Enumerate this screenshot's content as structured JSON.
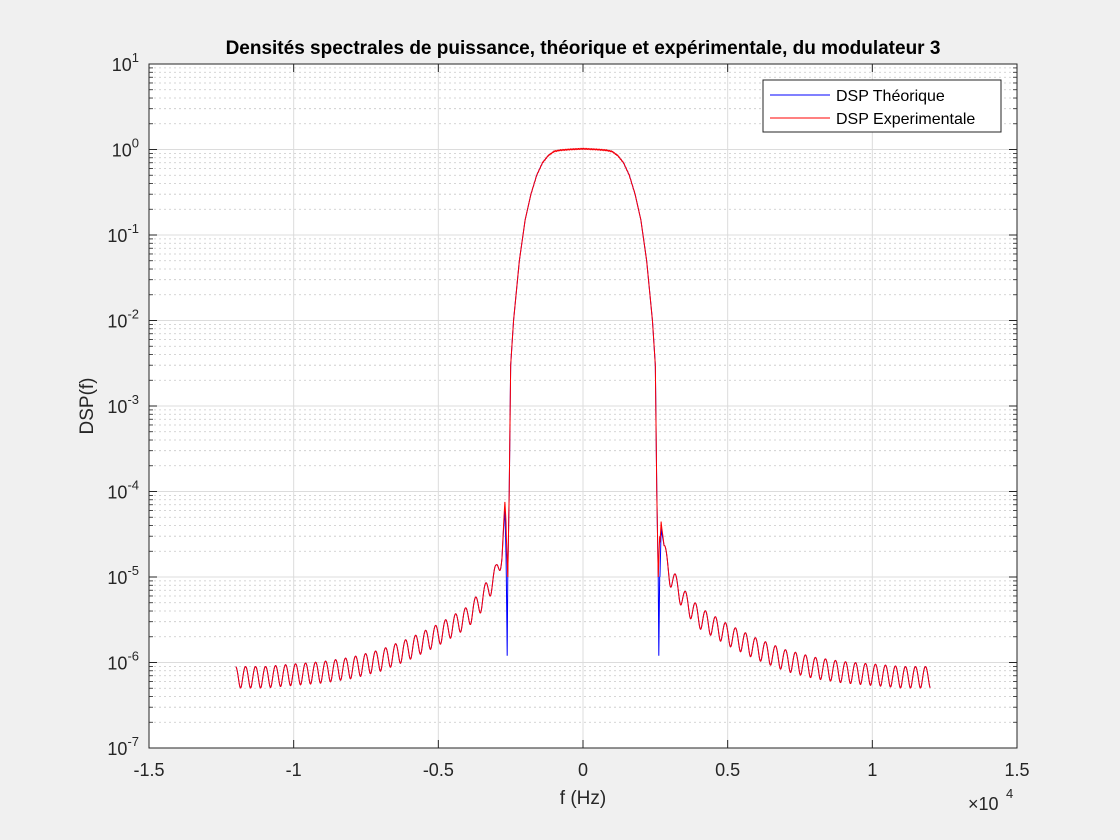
{
  "chart_data": {
    "type": "line",
    "title": "Densités spectrales de puissance, théorique et expérimentale, du modulateur 3",
    "xlabel": "f (Hz)",
    "ylabel": "DSP(f)",
    "x_exponent_label": "×10",
    "x_exponent_power": "4",
    "x_scale_factor": 10000,
    "xlim": [
      -15000,
      15000
    ],
    "ylim": [
      1e-07,
      10
    ],
    "yscale": "log",
    "grid": "on (major and minor)",
    "legend_position": "top-right",
    "x_ticks": [
      -15000,
      -10000,
      -5000,
      0,
      5000,
      10000,
      15000
    ],
    "x_tick_labels": [
      "-1.5",
      "-1",
      "-0.5",
      "0",
      "0.5",
      "1",
      "1.5"
    ],
    "y_ticks": [
      {
        "value": 1e-07,
        "base": "10",
        "exp": "-7"
      },
      {
        "value": 1e-06,
        "base": "10",
        "exp": "-6"
      },
      {
        "value": 1e-05,
        "base": "10",
        "exp": "-5"
      },
      {
        "value": 0.0001,
        "base": "10",
        "exp": "-4"
      },
      {
        "value": 0.001,
        "base": "10",
        "exp": "-3"
      },
      {
        "value": 0.01,
        "base": "10",
        "exp": "-2"
      },
      {
        "value": 0.1,
        "base": "10",
        "exp": "-1"
      },
      {
        "value": 1,
        "base": "10",
        "exp": "0"
      },
      {
        "value": 10,
        "base": "10",
        "exp": "1"
      }
    ],
    "series": [
      {
        "name": "DSP Théorique",
        "color": "#0000ff",
        "x": [
          -12000,
          -11000,
          -10000,
          -9000,
          -8000,
          -7000,
          -6000,
          -5000,
          -4000,
          -3500,
          -3000,
          -2800,
          -2700,
          -2650,
          -2620,
          -2600,
          -2550,
          -2500,
          -2400,
          -2200,
          -2000,
          -1800,
          -1600,
          -1400,
          -1200,
          -1000,
          -800,
          -500,
          0,
          500,
          800,
          1000,
          1200,
          1400,
          1600,
          1800,
          2000,
          2200,
          2400,
          2500,
          2550,
          2600,
          2620,
          2650,
          2700,
          2800,
          3000,
          3500,
          4000,
          5000,
          6000,
          7000,
          8000,
          9000,
          10000,
          11000,
          12000
        ],
        "y": [
          7e-07,
          7e-07,
          7.5e-07,
          8e-07,
          9e-07,
          1.1e-06,
          1.5e-06,
          2.2e-06,
          3.5e-06,
          5.5e-06,
          1.1e-05,
          2e-05,
          5e-05,
          1e-05,
          1.2e-06,
          1e-05,
          0.0001,
          0.003,
          0.01,
          0.05,
          0.15,
          0.3,
          0.5,
          0.7,
          0.85,
          0.95,
          0.98,
          1.0,
          1.02,
          1.0,
          0.98,
          0.95,
          0.85,
          0.7,
          0.5,
          0.3,
          0.15,
          0.05,
          0.01,
          0.003,
          0.0001,
          1e-05,
          1.2e-06,
          1e-05,
          5e-05,
          2e-05,
          1.1e-05,
          5.5e-06,
          3.5e-06,
          2.2e-06,
          1.5e-06,
          1.1e-06,
          9e-07,
          8e-07,
          7.5e-07,
          7e-07,
          7e-07
        ]
      },
      {
        "name": "DSP Experimentale",
        "color": "#ff0000",
        "x": [
          -12000,
          -11000,
          -10000,
          -9000,
          -8000,
          -7000,
          -6000,
          -5000,
          -4000,
          -3500,
          -3000,
          -2800,
          -2700,
          -2650,
          -2600,
          -2550,
          -2500,
          -2400,
          -2200,
          -2000,
          -1800,
          -1600,
          -1400,
          -1200,
          -1000,
          -800,
          -500,
          0,
          500,
          800,
          1000,
          1200,
          1400,
          1600,
          1800,
          2000,
          2200,
          2400,
          2500,
          2550,
          2600,
          2650,
          2700,
          2800,
          3000,
          3500,
          4000,
          5000,
          6000,
          7000,
          8000,
          9000,
          10000,
          11000,
          12000
        ],
        "y": [
          7e-07,
          7e-07,
          7.5e-07,
          8e-07,
          9e-07,
          1.1e-06,
          1.5e-06,
          2.2e-06,
          3.5e-06,
          5.5e-06,
          1.1e-05,
          2e-05,
          6e-05,
          3e-05,
          1e-05,
          0.0001,
          0.003,
          0.01,
          0.05,
          0.15,
          0.3,
          0.5,
          0.7,
          0.85,
          0.95,
          0.98,
          1.0,
          1.02,
          1.0,
          0.98,
          0.95,
          0.85,
          0.7,
          0.5,
          0.3,
          0.15,
          0.05,
          0.01,
          0.003,
          0.0001,
          1e-05,
          3e-05,
          6e-05,
          2e-05,
          1.1e-05,
          5.5e-06,
          3.5e-06,
          2.2e-06,
          1.5e-06,
          1.1e-06,
          9e-07,
          8e-07,
          7.5e-07,
          7e-07,
          7e-07
        ]
      }
    ]
  }
}
